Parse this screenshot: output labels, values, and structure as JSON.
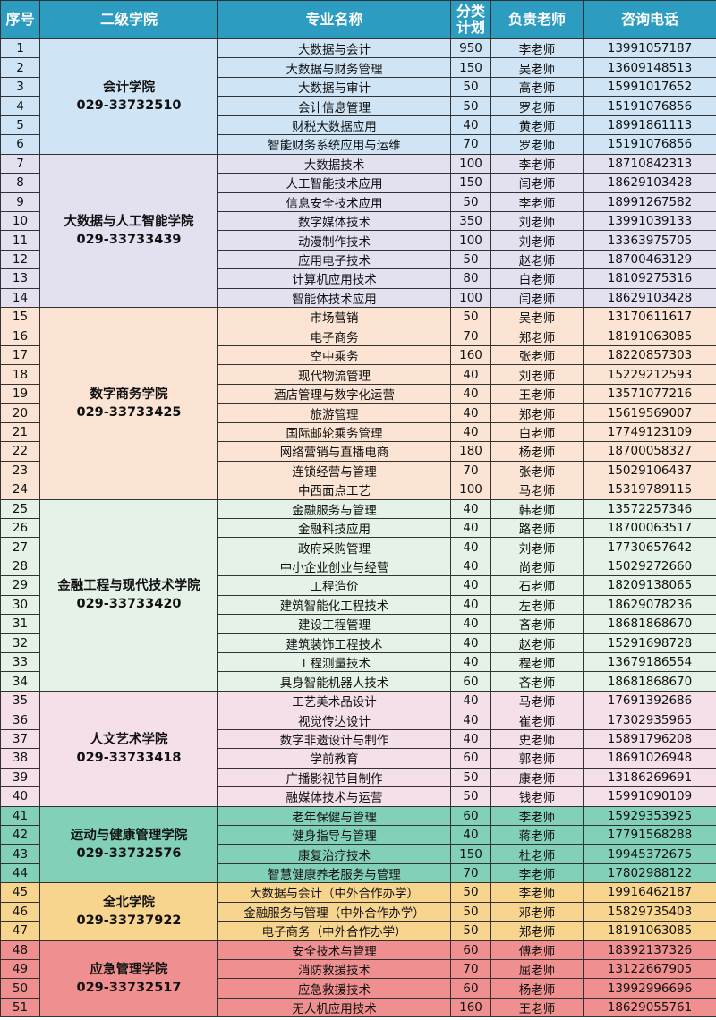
{
  "table": {
    "header": [
      "序号",
      "二级学院",
      "专业名称",
      "分类计划",
      "负责老师",
      "咨询电话"
    ],
    "groups": [
      {
        "name": "会计学院",
        "phone": "029-33732510",
        "rows": [
          [
            1,
            "大数据与会计",
            950,
            "李老师",
            "13991057187"
          ],
          [
            2,
            "大数据与财务管理",
            150,
            "吴老师",
            "13609148513"
          ],
          [
            3,
            "大数据与审计",
            50,
            "高老师",
            "15991017652"
          ],
          [
            4,
            "会计信息管理",
            50,
            "罗老师",
            "15191076856"
          ],
          [
            5,
            "财税大数据应用",
            40,
            "黄老师",
            "18991861113"
          ],
          [
            6,
            "智能财务系统应用与运维",
            70,
            "罗老师",
            "15191076856"
          ]
        ]
      },
      {
        "name": "大数据与人工智能学院",
        "phone": "029-33733439",
        "rows": [
          [
            7,
            "大数据技术",
            100,
            "李老师",
            "18710842313"
          ],
          [
            8,
            "人工智能技术应用",
            150,
            "闫老师",
            "18629103428"
          ],
          [
            9,
            "信息安全技术应用",
            50,
            "李老师",
            "18991267582"
          ],
          [
            10,
            "数字媒体技术",
            350,
            "刘老师",
            "13991039133"
          ],
          [
            11,
            "动漫制作技术",
            100,
            "刘老师",
            "13363975705"
          ],
          [
            12,
            "应用电子技术",
            50,
            "赵老师",
            "18700463129"
          ],
          [
            13,
            "计算机应用技术",
            80,
            "白老师",
            "18109275316"
          ],
          [
            14,
            "智能体技术应用",
            100,
            "闫老师",
            "18629103428"
          ]
        ]
      },
      {
        "name": "数字商务学院",
        "phone": "029-33733425",
        "rows": [
          [
            15,
            "市场营销",
            50,
            "吴老师",
            "13170611617"
          ],
          [
            16,
            "电子商务",
            70,
            "郑老师",
            "18191063085"
          ],
          [
            17,
            "空中乘务",
            160,
            "张老师",
            "18220857303"
          ],
          [
            18,
            "现代物流管理",
            40,
            "刘老师",
            "15229212593"
          ],
          [
            19,
            "酒店管理与数字化运营",
            40,
            "王老师",
            "13571077216"
          ],
          [
            20,
            "旅游管理",
            40,
            "郑老师",
            "15619569007"
          ],
          [
            21,
            "国际邮轮乘务管理",
            40,
            "白老师",
            "17749123109"
          ],
          [
            22,
            "网络营销与直播电商",
            180,
            "杨老师",
            "18700058327"
          ],
          [
            23,
            "连锁经营与管理",
            70,
            "张老师",
            "15029106437"
          ],
          [
            24,
            "中西面点工艺",
            100,
            "马老师",
            "15319789115"
          ]
        ]
      },
      {
        "name": "金融工程与现代技术学院",
        "phone": "029-33733420",
        "rows": [
          [
            25,
            "金融服务与管理",
            40,
            "韩老师",
            "13572257346"
          ],
          [
            26,
            "金融科技应用",
            40,
            "路老师",
            "18700063517"
          ],
          [
            27,
            "政府采购管理",
            40,
            "刘老师",
            "17730657642"
          ],
          [
            28,
            "中小企业创业与经营",
            40,
            "尚老师",
            "15029272660"
          ],
          [
            29,
            "工程造价",
            40,
            "石老师",
            "18209138065"
          ],
          [
            30,
            "建筑智能化工程技术",
            40,
            "左老师",
            "18629078236"
          ],
          [
            31,
            "建设工程管理",
            40,
            "吝老师",
            "18681868670"
          ],
          [
            32,
            "建筑装饰工程技术",
            40,
            "赵老师",
            "15291698728"
          ],
          [
            33,
            "工程测量技术",
            40,
            "程老师",
            "13679186554"
          ],
          [
            34,
            "具身智能机器人技术",
            60,
            "吝老师",
            "18681868670"
          ]
        ]
      },
      {
        "name": "人文艺术学院",
        "phone": "029-33733418",
        "rows": [
          [
            35,
            "工艺美术品设计",
            40,
            "马老师",
            "17691392686"
          ],
          [
            36,
            "视觉传达设计",
            40,
            "崔老师",
            "17302935965"
          ],
          [
            37,
            "数字非遗设计与制作",
            40,
            "史老师",
            "15891796208"
          ],
          [
            38,
            "学前教育",
            60,
            "郭老师",
            "18691026948"
          ],
          [
            39,
            "广播影视节目制作",
            50,
            "康老师",
            "13186269691"
          ],
          [
            40,
            "融媒体技术与运营",
            50,
            "钱老师",
            "15991090109"
          ]
        ]
      },
      {
        "name": "运动与健康管理学院",
        "phone": "029-33732576",
        "rows": [
          [
            41,
            "老年保健与管理",
            60,
            "李老师",
            "15929353925"
          ],
          [
            42,
            "健身指导与管理",
            40,
            "蒋老师",
            "17791568288"
          ],
          [
            43,
            "康复治疗技术",
            150,
            "杜老师",
            "19945372675"
          ],
          [
            44,
            "智慧健康养老服务与管理",
            70,
            "李老师",
            "17802988122"
          ]
        ]
      },
      {
        "name": "全北学院",
        "phone": "029-33737922",
        "rows": [
          [
            45,
            "大数据与会计（中外合作办学）",
            50,
            "李老师",
            "19916462187"
          ],
          [
            46,
            "金融服务与管理（中外合作办学）",
            50,
            "邓老师",
            "15829735403"
          ],
          [
            47,
            "电子商务（中外合作办学）",
            50,
            "郑老师",
            "18191063085"
          ]
        ]
      },
      {
        "name": "应急管理学院",
        "phone": "029-33732517",
        "rows": [
          [
            48,
            "安全技术与管理",
            60,
            "傅老师",
            "18392137326"
          ],
          [
            49,
            "消防救援技术",
            70,
            "屈老师",
            "13122667905"
          ],
          [
            50,
            "应急救援技术",
            60,
            "杨老师",
            "13992996696"
          ],
          [
            51,
            "无人机应用技术",
            160,
            "王老师",
            "18629055761"
          ]
        ]
      }
    ]
  }
}
